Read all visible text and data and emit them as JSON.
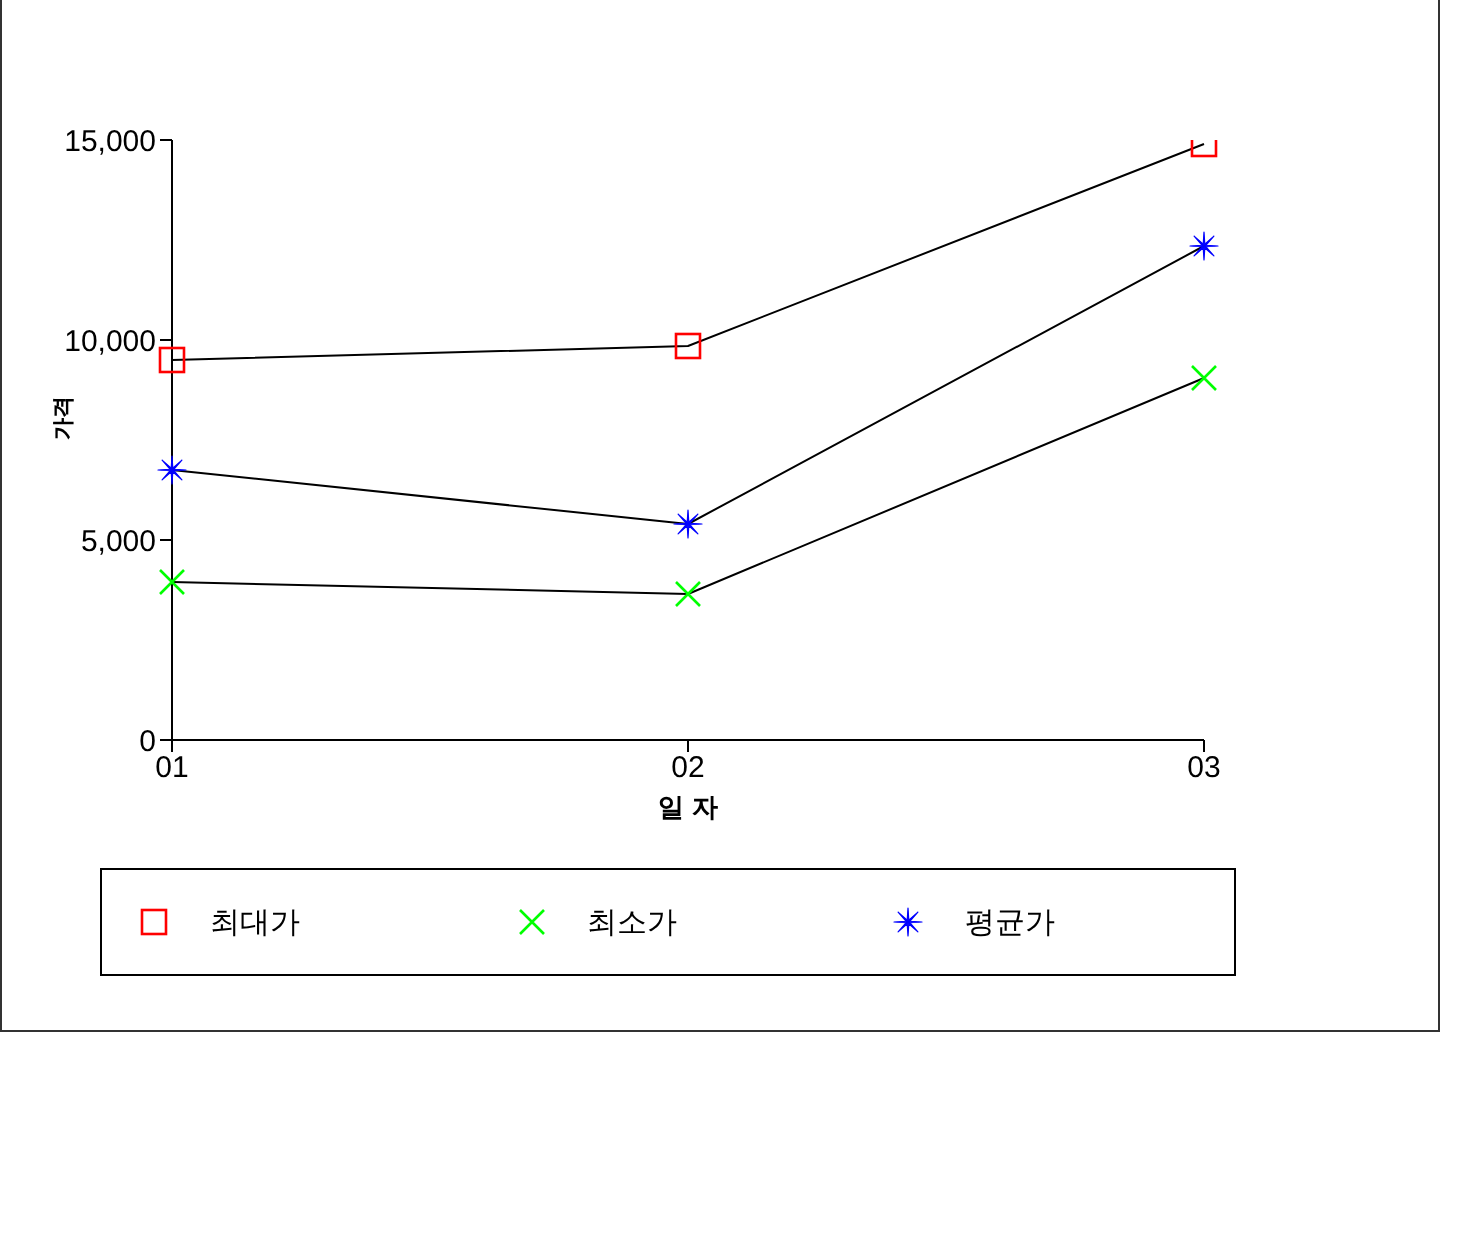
{
  "chart_data": {
    "type": "line",
    "xlabel": "일 자",
    "ylabel": "가격",
    "categories": [
      "01",
      "02",
      "03"
    ],
    "series": [
      {
        "name": "최대가",
        "color": "#ff0000",
        "marker": "square",
        "values": [
          9500,
          9850,
          14900
        ]
      },
      {
        "name": "최소가",
        "color": "#00ff00",
        "marker": "cross",
        "values": [
          3950,
          3650,
          9050
        ]
      },
      {
        "name": "평균가",
        "color": "#0000ff",
        "marker": "star",
        "values": [
          6750,
          5400,
          12350
        ]
      }
    ],
    "ylim": [
      0,
      15000
    ],
    "yticks": [
      {
        "value": 0,
        "label": "0"
      },
      {
        "value": 5000,
        "label": "5,000"
      },
      {
        "value": 10000,
        "label": "10,000"
      },
      {
        "value": 15000,
        "label": "15,000"
      }
    ],
    "grid": false,
    "legend": "bottom",
    "line_style": "solid"
  }
}
